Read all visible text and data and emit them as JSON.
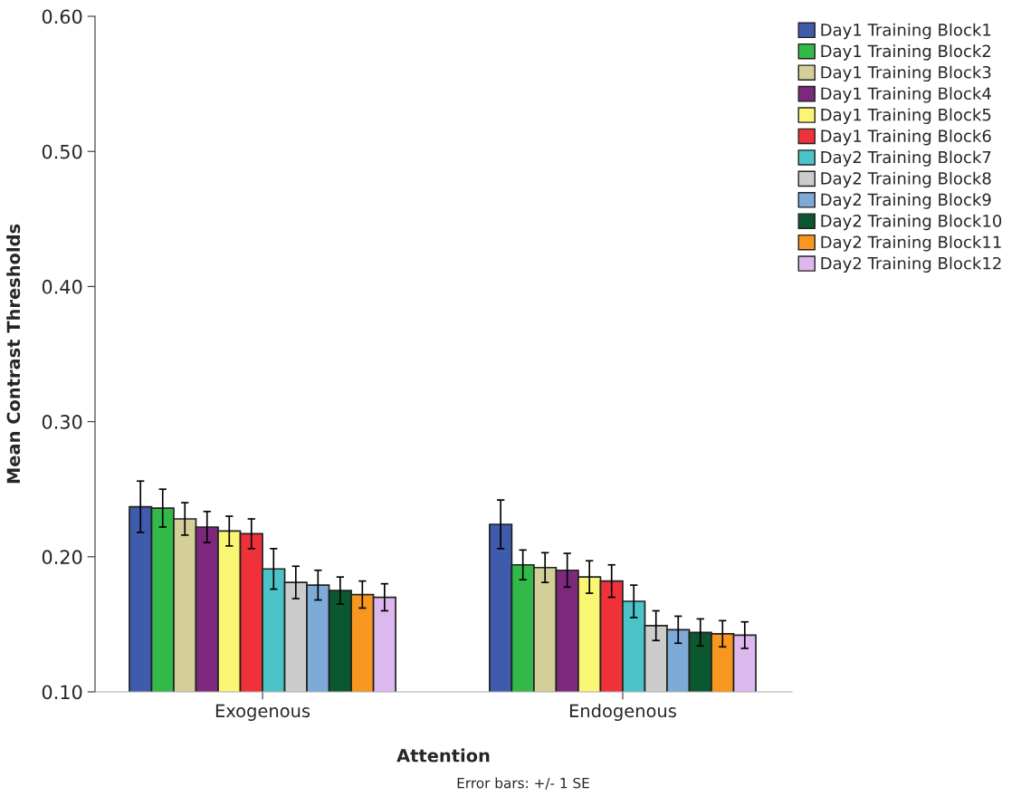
{
  "chart_data": {
    "type": "bar",
    "xlabel": "Attention",
    "ylabel": "Mean Contrast Thresholds",
    "categories": [
      "Exogenous",
      "Endogenous"
    ],
    "series": [
      {
        "name": "Day1 Training Block1",
        "color": "#3f5bab",
        "values": [
          0.237,
          0.224
        ],
        "errors": [
          0.019,
          0.018
        ]
      },
      {
        "name": "Day1 Training Block2",
        "color": "#33b84a",
        "values": [
          0.236,
          0.194
        ],
        "errors": [
          0.014,
          0.011
        ]
      },
      {
        "name": "Day1 Training Block3",
        "color": "#d4cf98",
        "values": [
          0.228,
          0.192
        ],
        "errors": [
          0.012,
          0.011
        ]
      },
      {
        "name": "Day1 Training Block4",
        "color": "#7d287d",
        "values": [
          0.222,
          0.19
        ],
        "errors": [
          0.0115,
          0.0125
        ]
      },
      {
        "name": "Day1 Training Block5",
        "color": "#faf674",
        "values": [
          0.219,
          0.185
        ],
        "errors": [
          0.011,
          0.012
        ]
      },
      {
        "name": "Day1 Training Block6",
        "color": "#ef3239",
        "values": [
          0.217,
          0.182
        ],
        "errors": [
          0.011,
          0.012
        ]
      },
      {
        "name": "Day2 Training Block7",
        "color": "#4bc3c8",
        "values": [
          0.191,
          0.167
        ],
        "errors": [
          0.015,
          0.012
        ]
      },
      {
        "name": "Day2 Training Block8",
        "color": "#cccccc",
        "values": [
          0.181,
          0.149
        ],
        "errors": [
          0.012,
          0.011
        ]
      },
      {
        "name": "Day2 Training Block9",
        "color": "#7eaad8",
        "values": [
          0.179,
          0.146
        ],
        "errors": [
          0.011,
          0.01
        ]
      },
      {
        "name": "Day2 Training Block10",
        "color": "#0b5730",
        "values": [
          0.175,
          0.144
        ],
        "errors": [
          0.01,
          0.01
        ]
      },
      {
        "name": "Day2 Training Block11",
        "color": "#f7971f",
        "values": [
          0.172,
          0.143
        ],
        "errors": [
          0.01,
          0.0097
        ]
      },
      {
        "name": "Day2 Training Block12",
        "color": "#dcb8ef",
        "values": [
          0.17,
          0.142
        ],
        "errors": [
          0.01,
          0.0098
        ]
      }
    ],
    "ylim": [
      0.1,
      0.6
    ],
    "yticks": [
      {
        "value": 0.1,
        "label": "0.10"
      },
      {
        "value": 0.2,
        "label": "0.20"
      },
      {
        "value": 0.3,
        "label": "0.30"
      },
      {
        "value": 0.4,
        "label": "0.40"
      },
      {
        "value": 0.5,
        "label": "0.50"
      },
      {
        "value": 0.6,
        "label": "0.60"
      }
    ],
    "grid": false,
    "legend": "top right",
    "annotations": [
      "Error bars: +/- 1 SE"
    ]
  }
}
